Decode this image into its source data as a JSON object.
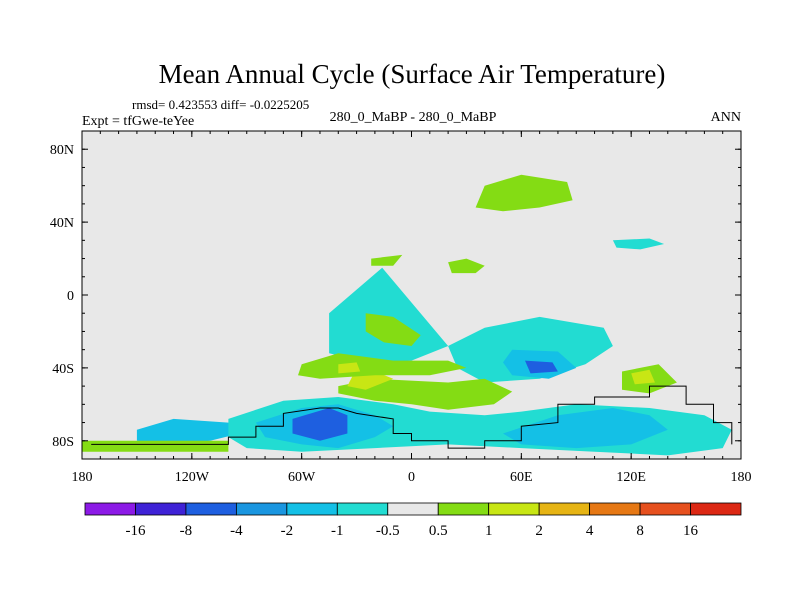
{
  "chart_data": {
    "type": "heatmap",
    "title": "Mean Annual Cycle (Surface Air Temperature)",
    "stats_line": "rmsd= 0.423553 diff= -0.0225205",
    "experiment_label": "Expt = tfGwe-teYee",
    "subtitle": "280_0_MaBP - 280_0_MaBP",
    "season_label": "ANN",
    "x_range": [
      -180,
      180
    ],
    "y_range": [
      -90,
      90
    ],
    "x_ticks": [
      {
        "value": -180,
        "label": "180"
      },
      {
        "value": -120,
        "label": "120W"
      },
      {
        "value": -60,
        "label": "60W"
      },
      {
        "value": 0,
        "label": "0"
      },
      {
        "value": 60,
        "label": "60E"
      },
      {
        "value": 120,
        "label": "120E"
      },
      {
        "value": 180,
        "label": "180"
      }
    ],
    "y_ticks": [
      {
        "value": 80,
        "label": "80N"
      },
      {
        "value": 40,
        "label": "40N"
      },
      {
        "value": 0,
        "label": "0"
      },
      {
        "value": -40,
        "label": "40S"
      },
      {
        "value": -80,
        "label": "80S"
      }
    ],
    "colorbar": {
      "labels": [
        "-16",
        "-8",
        "-4",
        "-2",
        "-1",
        "-0.5",
        "0.5",
        "1",
        "2",
        "4",
        "8",
        "16"
      ],
      "colors": [
        "#8c1ae6",
        "#3f22d6",
        "#1e5fe0",
        "#1a96e0",
        "#14c0e6",
        "#22dcd2",
        "#e8e8e8",
        "#84dc14",
        "#c8e614",
        "#e6b414",
        "#e67814",
        "#e6501e",
        "#dc2814"
      ]
    },
    "background_color": "#e8e8e8",
    "regions": [
      {
        "level": "-1",
        "color": "#22dcd2",
        "polygon": [
          [
            -16,
            15
          ],
          [
            -45,
            -10
          ],
          [
            -45,
            -32
          ],
          [
            -20,
            -38
          ],
          [
            0,
            -36
          ],
          [
            20,
            -28
          ],
          [
            40,
            -18
          ],
          [
            70,
            -12
          ],
          [
            105,
            -18
          ],
          [
            110,
            -28
          ],
          [
            95,
            -38
          ],
          [
            70,
            -46
          ],
          [
            40,
            -48
          ],
          [
            25,
            -40
          ],
          [
            20,
            -28
          ]
        ]
      },
      {
        "level": "-2",
        "color": "#14c0e6",
        "polygon": [
          [
            55,
            -30
          ],
          [
            80,
            -31
          ],
          [
            90,
            -40
          ],
          [
            75,
            -46
          ],
          [
            55,
            -44
          ],
          [
            50,
            -37
          ]
        ]
      },
      {
        "level": "-4",
        "color": "#1e5fe0",
        "polygon": [
          [
            62,
            -36
          ],
          [
            77,
            -37
          ],
          [
            80,
            -42
          ],
          [
            65,
            -43
          ]
        ]
      },
      {
        "level": "1",
        "color": "#84dc14",
        "polygon": [
          [
            -40,
            -50
          ],
          [
            -20,
            -46
          ],
          [
            20,
            -48
          ],
          [
            40,
            -46
          ],
          [
            55,
            -53
          ],
          [
            45,
            -60
          ],
          [
            20,
            -63
          ],
          [
            0,
            -60
          ],
          [
            -20,
            -58
          ],
          [
            -40,
            -54
          ]
        ]
      },
      {
        "level": "2",
        "color": "#c8e614",
        "polygon": [
          [
            -32,
            -44
          ],
          [
            -20,
            -42
          ],
          [
            -10,
            -46
          ],
          [
            -25,
            -52
          ],
          [
            -35,
            -50
          ]
        ]
      },
      {
        "level": "1",
        "color": "#84dc14",
        "polygon": [
          [
            -60,
            -38
          ],
          [
            -40,
            -32
          ],
          [
            -10,
            -36
          ],
          [
            20,
            -36
          ],
          [
            30,
            -40
          ],
          [
            10,
            -44
          ],
          [
            -20,
            -44
          ],
          [
            -50,
            -46
          ],
          [
            -62,
            -44
          ]
        ]
      },
      {
        "level": "2",
        "color": "#c8e614",
        "polygon": [
          [
            -40,
            -38
          ],
          [
            -30,
            -37
          ],
          [
            -28,
            -42
          ],
          [
            -40,
            -43
          ]
        ]
      },
      {
        "level": "1",
        "color": "#84dc14",
        "polygon": [
          [
            -25,
            -10
          ],
          [
            -10,
            -12
          ],
          [
            5,
            -22
          ],
          [
            0,
            -28
          ],
          [
            -15,
            -26
          ],
          [
            -25,
            -20
          ]
        ]
      },
      {
        "level": "-2",
        "color": "#14c0e6",
        "polygon": [
          [
            -150,
            -74
          ],
          [
            -130,
            -68
          ],
          [
            -100,
            -70
          ],
          [
            -90,
            -75
          ],
          [
            -110,
            -80
          ],
          [
            -130,
            -82
          ],
          [
            -150,
            -80
          ]
        ]
      },
      {
        "level": "-1",
        "color": "#22dcd2",
        "polygon": [
          [
            -100,
            -68
          ],
          [
            -70,
            -58
          ],
          [
            -40,
            -56
          ],
          [
            -10,
            -60
          ],
          [
            10,
            -64
          ],
          [
            40,
            -66
          ],
          [
            60,
            -64
          ],
          [
            90,
            -60
          ],
          [
            130,
            -62
          ],
          [
            160,
            -66
          ],
          [
            175,
            -74
          ],
          [
            170,
            -84
          ],
          [
            140,
            -88
          ],
          [
            100,
            -86
          ],
          [
            60,
            -84
          ],
          [
            20,
            -82
          ],
          [
            -20,
            -84
          ],
          [
            -60,
            -86
          ],
          [
            -90,
            -84
          ],
          [
            -100,
            -78
          ]
        ]
      },
      {
        "level": "-2",
        "color": "#14c0e6",
        "polygon": [
          [
            -85,
            -70
          ],
          [
            -60,
            -62
          ],
          [
            -40,
            -60
          ],
          [
            -20,
            -66
          ],
          [
            -10,
            -72
          ],
          [
            -20,
            -78
          ],
          [
            -40,
            -84
          ],
          [
            -60,
            -82
          ],
          [
            -80,
            -78
          ]
        ]
      },
      {
        "level": "-4",
        "color": "#1e5fe0",
        "polygon": [
          [
            -65,
            -68
          ],
          [
            -45,
            -62
          ],
          [
            -35,
            -66
          ],
          [
            -35,
            -76
          ],
          [
            -50,
            -80
          ],
          [
            -65,
            -76
          ]
        ]
      },
      {
        "level": "-2",
        "color": "#14c0e6",
        "polygon": [
          [
            50,
            -76
          ],
          [
            80,
            -66
          ],
          [
            110,
            -62
          ],
          [
            130,
            -66
          ],
          [
            140,
            -74
          ],
          [
            120,
            -82
          ],
          [
            90,
            -84
          ],
          [
            60,
            -82
          ]
        ]
      },
      {
        "level": "1",
        "color": "#84dc14",
        "polygon": [
          [
            115,
            -42
          ],
          [
            135,
            -38
          ],
          [
            145,
            -48
          ],
          [
            130,
            -54
          ],
          [
            115,
            -52
          ]
        ]
      },
      {
        "level": "2",
        "color": "#c8e614",
        "polygon": [
          [
            120,
            -43
          ],
          [
            130,
            -41
          ],
          [
            133,
            -48
          ],
          [
            122,
            -49
          ]
        ]
      },
      {
        "level": "1",
        "color": "#84dc14",
        "polygon": [
          [
            -180,
            -80
          ],
          [
            -100,
            -80
          ],
          [
            -100,
            -86
          ],
          [
            -180,
            -86
          ]
        ]
      },
      {
        "level": "1",
        "color": "#84dc14",
        "polygon": [
          [
            40,
            60
          ],
          [
            60,
            66
          ],
          [
            85,
            62
          ],
          [
            88,
            52
          ],
          [
            70,
            48
          ],
          [
            50,
            46
          ],
          [
            35,
            48
          ]
        ]
      },
      {
        "level": "1",
        "color": "#84dc14",
        "polygon": [
          [
            20,
            18
          ],
          [
            30,
            20
          ],
          [
            40,
            16
          ],
          [
            35,
            12
          ],
          [
            22,
            12
          ]
        ]
      },
      {
        "level": "1",
        "color": "#84dc14",
        "polygon": [
          [
            -22,
            20
          ],
          [
            -5,
            22
          ],
          [
            -10,
            16
          ],
          [
            -22,
            16
          ]
        ]
      },
      {
        "level": "-1",
        "color": "#22dcd2",
        "polygon": [
          [
            110,
            30
          ],
          [
            130,
            31
          ],
          [
            138,
            28
          ],
          [
            125,
            25
          ],
          [
            112,
            26
          ]
        ]
      }
    ],
    "outline_path_geo": [
      [
        -175,
        -82
      ],
      [
        -100,
        -82
      ],
      [
        -100,
        -78
      ],
      [
        -85,
        -78
      ],
      [
        -85,
        -72
      ],
      [
        -70,
        -72
      ],
      [
        -70,
        -65
      ],
      [
        -50,
        -62
      ],
      [
        -40,
        -62
      ],
      [
        -30,
        -65
      ],
      [
        -10,
        -68
      ],
      [
        -10,
        -76
      ],
      [
        0,
        -76
      ],
      [
        0,
        -80
      ],
      [
        20,
        -80
      ],
      [
        20,
        -84
      ],
      [
        40,
        -84
      ],
      [
        40,
        -80
      ],
      [
        60,
        -80
      ],
      [
        60,
        -72
      ],
      [
        80,
        -70
      ],
      [
        80,
        -60
      ],
      [
        100,
        -60
      ],
      [
        100,
        -56
      ],
      [
        130,
        -56
      ],
      [
        130,
        -50
      ],
      [
        150,
        -50
      ],
      [
        150,
        -60
      ],
      [
        165,
        -60
      ],
      [
        165,
        -70
      ],
      [
        175,
        -70
      ],
      [
        175,
        -82
      ]
    ]
  }
}
